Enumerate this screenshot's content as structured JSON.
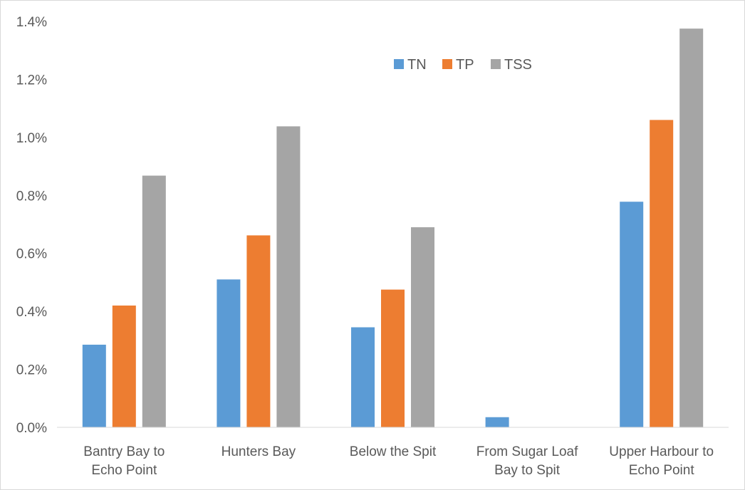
{
  "chart_data": {
    "type": "bar",
    "categories": [
      [
        "Bantry Bay to",
        "Echo Point"
      ],
      [
        "Hunters Bay"
      ],
      [
        "Below the Spit"
      ],
      [
        "From Sugar Loaf",
        "Bay to Spit"
      ],
      [
        "Upper Harbour to",
        "Echo Point"
      ]
    ],
    "series": [
      {
        "name": "TN",
        "color": "#5B9BD5",
        "values": [
          0.285,
          0.51,
          0.345,
          0.035,
          0.778
        ]
      },
      {
        "name": "TP",
        "color": "#ED7D31",
        "values": [
          0.42,
          0.662,
          0.475,
          0,
          1.06
        ]
      },
      {
        "name": "TSS",
        "color": "#A5A5A5",
        "values": [
          0.868,
          1.038,
          0.69,
          0,
          1.375
        ]
      }
    ],
    "y_ticks": [
      "0.0%",
      "0.2%",
      "0.4%",
      "0.6%",
      "0.8%",
      "1.0%",
      "1.2%",
      "1.4%"
    ],
    "ylim": [
      0,
      1.4
    ],
    "y_unit": "%",
    "legend_position": "top-center",
    "grid": false
  }
}
